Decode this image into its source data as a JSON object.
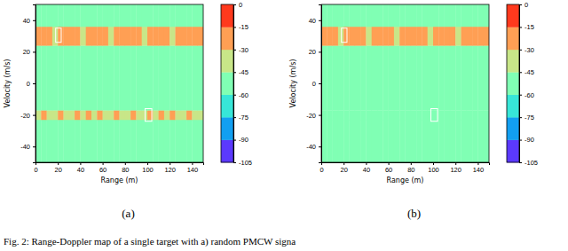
{
  "caption": "Fig. 2: Range-Doppler map of a single target with a) random PMCW signa",
  "chart_data": [
    {
      "type": "heatmap",
      "label": "(a)",
      "x_label": "Range (m)",
      "y_label": "Velocity (m/s)",
      "xlim": [
        0,
        150
      ],
      "ylim": [
        -50,
        50
      ],
      "xticks": [
        0,
        20,
        40,
        60,
        80,
        100,
        120,
        140
      ],
      "yticks": [
        -40,
        -20,
        0,
        20,
        40
      ],
      "color": "rainbow",
      "colorbar": {
        "range": [
          -105,
          0
        ],
        "ticks": [
          -105,
          -90,
          -75,
          -60,
          -45,
          -30,
          -15,
          0
        ]
      },
      "x_edges": [
        0,
        5,
        10,
        15,
        20,
        25,
        30,
        35,
        40,
        45,
        50,
        55,
        60,
        65,
        70,
        75,
        80,
        85,
        90,
        95,
        100,
        105,
        110,
        115,
        120,
        125,
        130,
        135,
        140,
        145,
        150
      ],
      "y_edges": [
        -50,
        -23,
        -17,
        24,
        36,
        50
      ],
      "cells": [
        [
          -52,
          -52,
          -52,
          -52,
          -52,
          -52,
          -52,
          -52,
          -52,
          -52,
          -52,
          -52,
          -52,
          -52,
          -52,
          -52,
          -52,
          -52,
          -52,
          -52,
          -52,
          -52,
          -52,
          -52,
          -52,
          -52,
          -52,
          -52,
          -52,
          -52
        ],
        [
          -34,
          -28,
          -36,
          -31,
          -27,
          -38,
          -33,
          -29,
          -35,
          -30,
          -37,
          -28,
          -34,
          -32,
          -27,
          -36,
          -31,
          -29,
          -38,
          -33,
          -28,
          -35,
          -30,
          -36,
          -29,
          -34,
          -31,
          -27,
          -37,
          -32
        ],
        [
          -52,
          -52,
          -52,
          -52,
          -52,
          -52,
          -52,
          -52,
          -52,
          -52,
          -52,
          -52,
          -52,
          -52,
          -52,
          -52,
          -52,
          -52,
          -52,
          -52,
          -52,
          -52,
          -52,
          -52,
          -52,
          -52,
          -52,
          -52,
          -52,
          -52
        ],
        [
          -22,
          -28,
          -20,
          -33,
          -24,
          -19,
          -27,
          -21,
          -32,
          -23,
          -20,
          -26,
          -22,
          -34,
          -19,
          -25,
          -21,
          -28,
          -23,
          -31,
          -20,
          -24,
          -27,
          -19,
          -33,
          -22,
          -26,
          -21,
          -29,
          -24
        ],
        [
          -52,
          -52,
          -52,
          -52,
          -52,
          -52,
          -52,
          -52,
          -52,
          -52,
          -52,
          -52,
          -52,
          -52,
          -52,
          -52,
          -52,
          -52,
          -52,
          -52,
          -52,
          -52,
          -52,
          -52,
          -52,
          -52,
          -52,
          -52,
          -52,
          -52
        ]
      ],
      "boxes": [
        {
          "x": [
            18,
            23
          ],
          "y": [
            26,
            35
          ]
        },
        {
          "x": [
            98,
            104
          ],
          "y": [
            -24,
            -16
          ]
        }
      ]
    },
    {
      "type": "heatmap",
      "label": "(b)",
      "x_label": "Range (m)",
      "y_label": "Velocity (m/s)",
      "xlim": [
        0,
        150
      ],
      "ylim": [
        -50,
        50
      ],
      "xticks": [
        0,
        20,
        40,
        60,
        80,
        100,
        120,
        140
      ],
      "yticks": [
        -40,
        -20,
        0,
        20,
        40
      ],
      "color": "rainbow",
      "colorbar": {
        "range": [
          -105,
          0
        ],
        "ticks": [
          -105,
          -90,
          -75,
          -60,
          -45,
          -30,
          -15,
          0
        ]
      },
      "x_edges": [
        0,
        5,
        10,
        15,
        20,
        25,
        30,
        35,
        40,
        45,
        50,
        55,
        60,
        65,
        70,
        75,
        80,
        85,
        90,
        95,
        100,
        105,
        110,
        115,
        120,
        125,
        130,
        135,
        140,
        145,
        150
      ],
      "y_edges": [
        -50,
        -23,
        -17,
        24,
        36,
        50
      ],
      "cells": [
        [
          -52,
          -52,
          -52,
          -52,
          -52,
          -52,
          -52,
          -52,
          -52,
          -52,
          -52,
          -52,
          -52,
          -52,
          -52,
          -52,
          -52,
          -52,
          -52,
          -52,
          -52,
          -52,
          -52,
          -52,
          -52,
          -52,
          -52,
          -52,
          -52,
          -52
        ],
        [
          -53,
          -52,
          -54,
          -52,
          -53,
          -52,
          -54,
          -52,
          -53,
          -52,
          -54,
          -52,
          -53,
          -52,
          -54,
          -52,
          -53,
          -52,
          -54,
          -52,
          -53,
          -52,
          -54,
          -52,
          -53,
          -52,
          -54,
          -52,
          -53,
          -52
        ],
        [
          -52,
          -52,
          -52,
          -52,
          -52,
          -52,
          -52,
          -52,
          -52,
          -52,
          -52,
          -52,
          -52,
          -52,
          -52,
          -52,
          -52,
          -52,
          -52,
          -52,
          -52,
          -52,
          -52,
          -52,
          -52,
          -52,
          -52,
          -52,
          -52,
          -52
        ],
        [
          -22,
          -28,
          -20,
          -33,
          -24,
          -19,
          -27,
          -21,
          -32,
          -23,
          -20,
          -26,
          -22,
          -34,
          -19,
          -25,
          -21,
          -28,
          -23,
          -31,
          -20,
          -24,
          -27,
          -19,
          -33,
          -22,
          -26,
          -21,
          -29,
          -24
        ],
        [
          -52,
          -52,
          -52,
          -52,
          -52,
          -52,
          -52,
          -52,
          -52,
          -52,
          -52,
          -52,
          -52,
          -52,
          -52,
          -52,
          -52,
          -52,
          -52,
          -52,
          -52,
          -52,
          -52,
          -52,
          -52,
          -52,
          -52,
          -52,
          -52,
          -52
        ]
      ],
      "boxes": [
        {
          "x": [
            18,
            23
          ],
          "y": [
            26,
            35
          ]
        },
        {
          "x": [
            98,
            104
          ],
          "y": [
            -24,
            -16
          ]
        }
      ]
    }
  ]
}
